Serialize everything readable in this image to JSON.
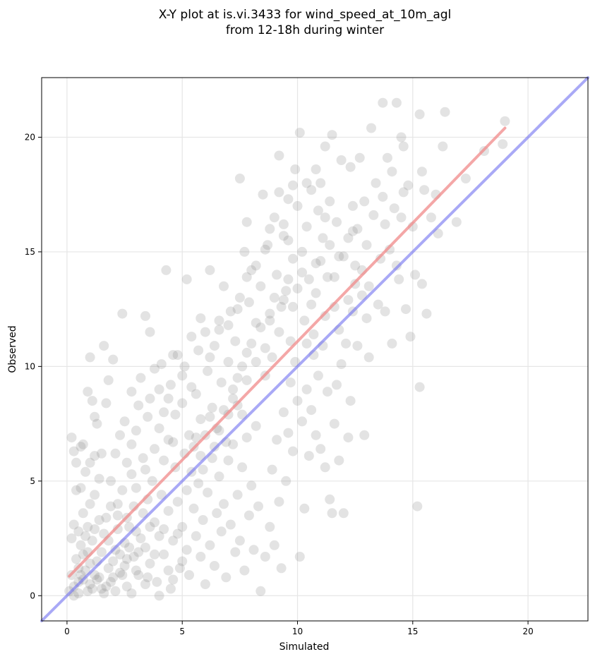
{
  "chart_data": {
    "type": "scatter",
    "title_line1": "X-Y plot at is.vi.3433 for wind_speed_at_10m_agl",
    "title_line2": "from 12-18h during winter",
    "xlabel": "Simulated",
    "ylabel": "Observed",
    "xlim": [
      -1.1,
      22.6
    ],
    "ylim": [
      -1.1,
      22.6
    ],
    "x_ticks": [
      0,
      5,
      10,
      15,
      20
    ],
    "y_ticks": [
      0,
      5,
      10,
      15,
      20
    ],
    "grid": true,
    "point_color": "#808080",
    "identity_line": {
      "x": [
        -1.1,
        22.6
      ],
      "y": [
        -1.1,
        22.6
      ],
      "color": "#6f6ff0"
    },
    "fit_line": {
      "x": [
        0.1,
        19.0
      ],
      "y": [
        0.85,
        20.4
      ],
      "color": "#f08a8a"
    },
    "points": [
      [
        0.1,
        0.2
      ],
      [
        0.2,
        0.9
      ],
      [
        0.3,
        0.4
      ],
      [
        0.4,
        1.6
      ],
      [
        0.5,
        0.1
      ],
      [
        0.6,
        2.2
      ],
      [
        0.7,
        0.7
      ],
      [
        0.8,
        1.1
      ],
      [
        0.9,
        3.0
      ],
      [
        1.0,
        0.5
      ],
      [
        0.2,
        2.5
      ],
      [
        0.3,
        3.1
      ],
      [
        0.5,
        2.8
      ],
      [
        0.7,
        3.6
      ],
      [
        0.9,
        1.9
      ],
      [
        1.1,
        2.4
      ],
      [
        1.2,
        0.9
      ],
      [
        1.3,
        1.5
      ],
      [
        1.4,
        3.3
      ],
      [
        1.5,
        0.3
      ],
      [
        0.4,
        4.6
      ],
      [
        0.6,
        4.7
      ],
      [
        0.8,
        5.4
      ],
      [
        1.0,
        4.0
      ],
      [
        1.2,
        4.4
      ],
      [
        1.4,
        5.1
      ],
      [
        1.6,
        2.7
      ],
      [
        1.8,
        1.2
      ],
      [
        1.9,
        3.9
      ],
      [
        2.0,
        0.8
      ],
      [
        0.2,
        6.9
      ],
      [
        0.3,
        6.3
      ],
      [
        0.4,
        5.8
      ],
      [
        0.6,
        6.5
      ],
      [
        0.9,
        8.9
      ],
      [
        1.1,
        8.5
      ],
      [
        1.2,
        7.8
      ],
      [
        1.3,
        7.5
      ],
      [
        1.6,
        10.9
      ],
      [
        1.8,
        9.4
      ],
      [
        2.1,
        2.0
      ],
      [
        2.2,
        3.5
      ],
      [
        2.3,
        1.0
      ],
      [
        2.4,
        4.6
      ],
      [
        2.5,
        2.3
      ],
      [
        2.6,
        0.4
      ],
      [
        2.7,
        3.0
      ],
      [
        2.8,
        5.3
      ],
      [
        2.9,
        1.7
      ],
      [
        3.0,
        2.8
      ],
      [
        2.1,
        6.2
      ],
      [
        2.3,
        7.0
      ],
      [
        2.5,
        7.6
      ],
      [
        2.6,
        5.8
      ],
      [
        2.8,
        6.6
      ],
      [
        3.0,
        7.2
      ],
      [
        3.1,
        8.3
      ],
      [
        3.2,
        9.5
      ],
      [
        3.3,
        6.0
      ],
      [
        3.5,
        7.8
      ],
      [
        3.1,
        0.9
      ],
      [
        3.3,
        3.6
      ],
      [
        3.4,
        2.1
      ],
      [
        3.5,
        4.2
      ],
      [
        3.6,
        1.4
      ],
      [
        3.7,
        5.0
      ],
      [
        3.8,
        3.2
      ],
      [
        3.9,
        0.6
      ],
      [
        4.0,
        2.6
      ],
      [
        4.1,
        4.4
      ],
      [
        3.6,
        8.6
      ],
      [
        3.8,
        9.9
      ],
      [
        4.0,
        7.3
      ],
      [
        4.1,
        10.1
      ],
      [
        4.2,
        8.0
      ],
      [
        4.3,
        14.2
      ],
      [
        4.4,
        6.8
      ],
      [
        4.5,
        9.2
      ],
      [
        4.6,
        10.5
      ],
      [
        4.7,
        7.9
      ],
      [
        4.2,
        1.8
      ],
      [
        4.4,
        3.7
      ],
      [
        4.5,
        0.3
      ],
      [
        4.6,
        2.4
      ],
      [
        4.7,
        5.6
      ],
      [
        4.8,
        4.1
      ],
      [
        4.9,
        1.2
      ],
      [
        5.0,
        3.0
      ],
      [
        5.1,
        6.2
      ],
      [
        5.2,
        2.0
      ],
      [
        5.0,
        8.4
      ],
      [
        5.1,
        10.0
      ],
      [
        5.2,
        13.8
      ],
      [
        5.3,
        7.0
      ],
      [
        5.4,
        9.1
      ],
      [
        5.5,
        6.5
      ],
      [
        5.6,
        8.8
      ],
      [
        5.7,
        10.7
      ],
      [
        5.8,
        7.7
      ],
      [
        5.9,
        5.5
      ],
      [
        5.3,
        0.9
      ],
      [
        5.5,
        3.8
      ],
      [
        5.6,
        2.6
      ],
      [
        5.7,
        4.9
      ],
      [
        5.8,
        1.7
      ],
      [
        5.9,
        3.3
      ],
      [
        6.0,
        0.5
      ],
      [
        6.1,
        4.5
      ],
      [
        6.2,
        2.2
      ],
      [
        6.3,
        6.0
      ],
      [
        6.0,
        11.5
      ],
      [
        6.1,
        9.8
      ],
      [
        6.2,
        14.2
      ],
      [
        6.3,
        8.2
      ],
      [
        6.4,
        10.9
      ],
      [
        6.5,
        7.3
      ],
      [
        6.6,
        12.0
      ],
      [
        6.7,
        9.3
      ],
      [
        6.8,
        13.5
      ],
      [
        6.9,
        6.7
      ],
      [
        6.4,
        1.3
      ],
      [
        6.5,
        3.6
      ],
      [
        6.6,
        5.2
      ],
      [
        6.7,
        2.8
      ],
      [
        6.8,
        4.0
      ],
      [
        6.9,
        0.8
      ],
      [
        7.0,
        5.9
      ],
      [
        7.1,
        3.1
      ],
      [
        7.2,
        6.6
      ],
      [
        7.3,
        1.9
      ],
      [
        7.0,
        10.2
      ],
      [
        7.1,
        12.4
      ],
      [
        7.2,
        8.6
      ],
      [
        7.3,
        11.1
      ],
      [
        7.4,
        9.5
      ],
      [
        7.5,
        13.0
      ],
      [
        7.6,
        7.9
      ],
      [
        7.7,
        15.0
      ],
      [
        7.8,
        10.6
      ],
      [
        7.9,
        12.8
      ],
      [
        7.4,
        4.4
      ],
      [
        7.5,
        2.4
      ],
      [
        7.6,
        5.6
      ],
      [
        7.7,
        1.1
      ],
      [
        7.8,
        6.9
      ],
      [
        7.9,
        3.5
      ],
      [
        8.0,
        4.8
      ],
      [
        8.1,
        2.0
      ],
      [
        8.2,
        7.4
      ],
      [
        8.3,
        3.9
      ],
      [
        7.5,
        18.2
      ],
      [
        7.8,
        16.3
      ],
      [
        8.0,
        14.2
      ],
      [
        8.2,
        11.9
      ],
      [
        8.4,
        13.5
      ],
      [
        8.5,
        17.5
      ],
      [
        8.6,
        9.6
      ],
      [
        8.7,
        15.3
      ],
      [
        8.8,
        12.3
      ],
      [
        8.9,
        10.4
      ],
      [
        8.4,
        0.2
      ],
      [
        8.6,
        1.7
      ],
      [
        8.8,
        3.0
      ],
      [
        8.9,
        5.5
      ],
      [
        9.0,
        2.2
      ],
      [
        9.1,
        6.8
      ],
      [
        9.2,
        4.1
      ],
      [
        9.3,
        1.2
      ],
      [
        9.4,
        8.0
      ],
      [
        9.5,
        5.0
      ],
      [
        9.0,
        16.5
      ],
      [
        9.1,
        14.0
      ],
      [
        9.2,
        19.2
      ],
      [
        9.3,
        12.6
      ],
      [
        9.4,
        15.7
      ],
      [
        9.5,
        13.3
      ],
      [
        9.6,
        17.3
      ],
      [
        9.7,
        11.1
      ],
      [
        9.8,
        14.7
      ],
      [
        9.9,
        18.6
      ],
      [
        9.6,
        7.1
      ],
      [
        9.7,
        9.3
      ],
      [
        9.8,
        6.3
      ],
      [
        9.9,
        10.2
      ],
      [
        10.0,
        8.5
      ],
      [
        10.1,
        1.7
      ],
      [
        10.2,
        7.6
      ],
      [
        10.3,
        3.8
      ],
      [
        10.4,
        9.0
      ],
      [
        10.5,
        6.1
      ],
      [
        10.0,
        17.0
      ],
      [
        10.1,
        20.2
      ],
      [
        10.2,
        15.0
      ],
      [
        10.3,
        12.0
      ],
      [
        10.4,
        16.1
      ],
      [
        10.5,
        13.8
      ],
      [
        10.6,
        17.7
      ],
      [
        10.7,
        11.4
      ],
      [
        10.8,
        14.5
      ],
      [
        10.9,
        16.8
      ],
      [
        10.6,
        8.1
      ],
      [
        10.7,
        10.5
      ],
      [
        10.8,
        7.0
      ],
      [
        10.9,
        9.6
      ],
      [
        11.0,
        6.4
      ],
      [
        11.1,
        10.9
      ],
      [
        11.2,
        5.6
      ],
      [
        11.3,
        8.9
      ],
      [
        11.4,
        4.2
      ],
      [
        11.5,
        3.6
      ],
      [
        11.0,
        18.0
      ],
      [
        11.1,
        15.6
      ],
      [
        11.2,
        19.6
      ],
      [
        11.3,
        13.9
      ],
      [
        11.4,
        17.2
      ],
      [
        11.5,
        20.1
      ],
      [
        11.6,
        12.6
      ],
      [
        11.7,
        16.3
      ],
      [
        11.8,
        14.8
      ],
      [
        11.9,
        19.0
      ],
      [
        11.6,
        7.5
      ],
      [
        11.7,
        9.2
      ],
      [
        11.8,
        5.9
      ],
      [
        11.9,
        10.1
      ],
      [
        12.0,
        3.6
      ],
      [
        12.1,
        11.0
      ],
      [
        12.2,
        6.9
      ],
      [
        12.3,
        8.5
      ],
      [
        12.4,
        12.4
      ],
      [
        12.5,
        13.6
      ],
      [
        12.2,
        15.6
      ],
      [
        12.3,
        18.7
      ],
      [
        12.4,
        17.0
      ],
      [
        12.5,
        14.4
      ],
      [
        12.6,
        16.0
      ],
      [
        12.7,
        19.1
      ],
      [
        12.8,
        13.1
      ],
      [
        12.9,
        17.2
      ],
      [
        13.0,
        15.3
      ],
      [
        13.1,
        10.4
      ],
      [
        12.9,
        7.0
      ],
      [
        13.0,
        12.1
      ],
      [
        13.1,
        13.5
      ],
      [
        13.2,
        20.4
      ],
      [
        13.3,
        16.6
      ],
      [
        13.4,
        18.0
      ],
      [
        13.5,
        12.7
      ],
      [
        13.6,
        14.7
      ],
      [
        13.7,
        21.5
      ],
      [
        13.8,
        16.2
      ],
      [
        13.7,
        17.4
      ],
      [
        13.8,
        12.4
      ],
      [
        13.9,
        19.1
      ],
      [
        14.0,
        15.1
      ],
      [
        14.1,
        18.5
      ],
      [
        14.2,
        16.9
      ],
      [
        14.3,
        21.5
      ],
      [
        14.4,
        13.8
      ],
      [
        14.5,
        20.0
      ],
      [
        14.6,
        17.6
      ],
      [
        14.1,
        11.0
      ],
      [
        14.3,
        14.4
      ],
      [
        14.5,
        16.5
      ],
      [
        14.6,
        19.6
      ],
      [
        14.7,
        12.5
      ],
      [
        14.8,
        17.9
      ],
      [
        14.9,
        11.3
      ],
      [
        15.0,
        16.1
      ],
      [
        15.1,
        14.0
      ],
      [
        15.2,
        3.9
      ],
      [
        15.3,
        21.0
      ],
      [
        15.3,
        9.1
      ],
      [
        15.4,
        18.5
      ],
      [
        15.4,
        13.6
      ],
      [
        15.5,
        17.7
      ],
      [
        15.6,
        12.3
      ],
      [
        15.8,
        16.5
      ],
      [
        16.0,
        17.5
      ],
      [
        16.1,
        15.8
      ],
      [
        16.3,
        19.6
      ],
      [
        16.4,
        21.1
      ],
      [
        16.9,
        16.3
      ],
      [
        17.3,
        18.2
      ],
      [
        18.1,
        19.4
      ],
      [
        18.9,
        19.7
      ],
      [
        19.0,
        20.7
      ],
      [
        0.5,
        1.2
      ],
      [
        0.6,
        0.9
      ],
      [
        0.7,
        1.8
      ],
      [
        0.8,
        2.6
      ],
      [
        1.0,
        1.4
      ],
      [
        1.1,
        0.3
      ],
      [
        1.2,
        2.9
      ],
      [
        1.3,
        0.7
      ],
      [
        1.5,
        1.9
      ],
      [
        1.6,
        0.1
      ],
      [
        1.7,
        3.4
      ],
      [
        1.8,
        2.4
      ],
      [
        1.9,
        0.6
      ],
      [
        2.0,
        1.5
      ],
      [
        2.2,
        2.9
      ],
      [
        2.4,
        0.9
      ],
      [
        2.5,
        1.3
      ],
      [
        2.7,
        2.1
      ],
      [
        2.8,
        0.1
      ],
      [
        2.9,
        3.9
      ],
      [
        3.0,
        1.1
      ],
      [
        3.2,
        2.5
      ],
      [
        3.4,
        0.5
      ],
      [
        3.6,
        3.0
      ],
      [
        3.8,
        1.8
      ],
      [
        4.0,
        0.0
      ],
      [
        4.2,
        2.9
      ],
      [
        4.4,
        1.1
      ],
      [
        4.6,
        0.7
      ],
      [
        4.8,
        2.7
      ],
      [
        5.0,
        1.5
      ],
      [
        5.2,
        4.6
      ],
      [
        5.4,
        5.4
      ],
      [
        5.6,
        6.9
      ],
      [
        5.8,
        6.1
      ],
      [
        6.0,
        7.0
      ],
      [
        6.2,
        7.8
      ],
      [
        6.4,
        6.5
      ],
      [
        6.6,
        7.2
      ],
      [
        6.8,
        8.1
      ],
      [
        7.0,
        7.9
      ],
      [
        7.2,
        9.0
      ],
      [
        7.4,
        8.3
      ],
      [
        7.6,
        10.0
      ],
      [
        7.8,
        9.4
      ],
      [
        8.0,
        11.0
      ],
      [
        8.2,
        10.2
      ],
      [
        8.4,
        11.7
      ],
      [
        8.6,
        10.8
      ],
      [
        8.8,
        12.0
      ],
      [
        9.0,
        13.0
      ],
      [
        9.2,
        11.5
      ],
      [
        9.4,
        12.9
      ],
      [
        9.6,
        13.8
      ],
      [
        9.8,
        12.6
      ],
      [
        10.0,
        13.4
      ],
      [
        10.2,
        14.1
      ],
      [
        10.4,
        11.0
      ],
      [
        10.6,
        12.7
      ],
      [
        10.8,
        13.2
      ],
      [
        11.0,
        14.6
      ],
      [
        11.2,
        12.2
      ],
      [
        11.4,
        15.3
      ],
      [
        11.6,
        13.9
      ],
      [
        11.8,
        11.6
      ],
      [
        12.0,
        14.8
      ],
      [
        12.2,
        12.9
      ],
      [
        12.4,
        15.9
      ],
      [
        12.6,
        10.9
      ],
      [
        12.8,
        14.2
      ],
      [
        0.3,
        0.0
      ],
      [
        0.5,
        0.6
      ],
      [
        0.9,
        0.2
      ],
      [
        1.4,
        0.8
      ],
      [
        1.7,
        0.4
      ],
      [
        2.1,
        0.2
      ],
      [
        2.3,
        1.8
      ],
      [
        2.6,
        1.6
      ],
      [
        3.1,
        1.9
      ],
      [
        3.5,
        0.8
      ],
      [
        1.0,
        5.8
      ],
      [
        1.5,
        6.2
      ],
      [
        1.9,
        5.0
      ],
      [
        2.2,
        4.0
      ],
      [
        2.6,
        3.4
      ],
      [
        3.0,
        4.7
      ],
      [
        3.4,
        5.5
      ],
      [
        3.8,
        6.4
      ],
      [
        4.2,
        5.9
      ],
      [
        4.6,
        6.7
      ],
      [
        0.7,
        6.6
      ],
      [
        1.0,
        10.4
      ],
      [
        1.2,
        6.1
      ],
      [
        1.7,
        8.4
      ],
      [
        2.0,
        10.3
      ],
      [
        2.4,
        12.3
      ],
      [
        2.8,
        8.9
      ],
      [
        3.4,
        12.2
      ],
      [
        3.6,
        11.5
      ],
      [
        4.0,
        9.0
      ],
      [
        4.4,
        8.6
      ],
      [
        4.8,
        10.5
      ],
      [
        5.0,
        9.6
      ],
      [
        5.4,
        11.3
      ],
      [
        5.8,
        12.1
      ],
      [
        6.2,
        10.4
      ],
      [
        6.6,
        11.6
      ],
      [
        7.0,
        11.8
      ],
      [
        7.4,
        12.5
      ],
      [
        7.8,
        13.9
      ],
      [
        8.2,
        14.4
      ],
      [
        8.6,
        15.1
      ],
      [
        8.8,
        16.0
      ],
      [
        9.2,
        17.6
      ],
      [
        9.4,
        16.2
      ],
      [
        9.6,
        15.5
      ],
      [
        9.8,
        17.9
      ],
      [
        10.4,
        18.0
      ],
      [
        10.8,
        18.6
      ],
      [
        11.2,
        16.5
      ]
    ]
  }
}
